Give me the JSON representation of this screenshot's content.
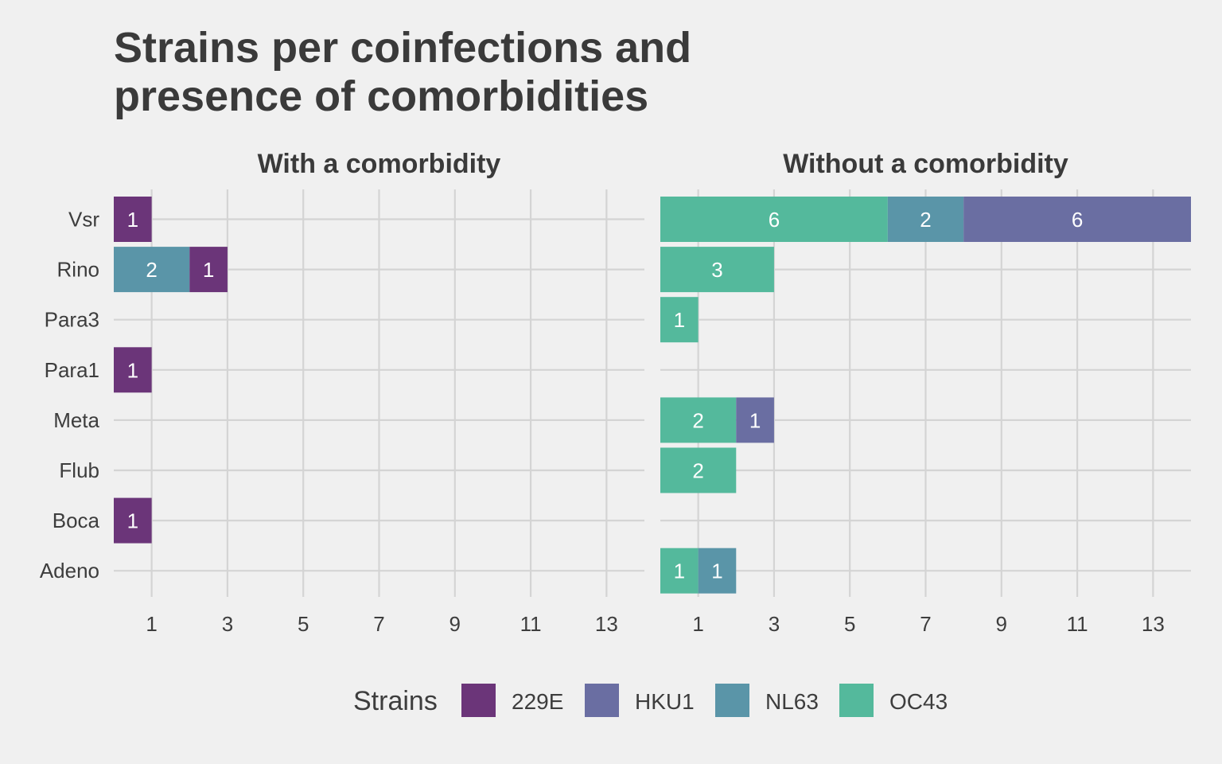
{
  "chart_data": {
    "type": "bar",
    "orientation": "horizontal",
    "stacked": true,
    "title": "Strains per coinfections and presence of comorbidities",
    "title_lines": [
      "Strains per coinfections and",
      "presence of comorbidities"
    ],
    "categories": [
      "Vsr",
      "Rino",
      "Para3",
      "Para1",
      "Meta",
      "Flub",
      "Boca",
      "Adeno"
    ],
    "x_ticks": [
      1,
      3,
      5,
      7,
      9,
      11,
      13
    ],
    "xlim": [
      0,
      14
    ],
    "grid": true,
    "legend": {
      "title": "Strains",
      "position": "bottom",
      "entries": [
        {
          "name": "229E",
          "color": "#6b3579"
        },
        {
          "name": "HKU1",
          "color": "#6a6ea2"
        },
        {
          "name": "NL63",
          "color": "#5a95a8"
        },
        {
          "name": "OC43",
          "color": "#54b99c"
        }
      ]
    },
    "stack_order": [
      "OC43",
      "NL63",
      "HKU1",
      "229E"
    ],
    "panels": [
      {
        "title": "With a comorbidity",
        "series": [
          {
            "name": "229E",
            "values": [
              1,
              1,
              0,
              1,
              0,
              0,
              1,
              0
            ]
          },
          {
            "name": "HKU1",
            "values": [
              0,
              0,
              0,
              0,
              0,
              0,
              0,
              0
            ]
          },
          {
            "name": "NL63",
            "values": [
              0,
              2,
              0,
              0,
              0,
              0,
              0,
              0
            ]
          },
          {
            "name": "OC43",
            "values": [
              0,
              0,
              0,
              0,
              0,
              0,
              0,
              0
            ]
          }
        ]
      },
      {
        "title": "Without a comorbidity",
        "series": [
          {
            "name": "229E",
            "values": [
              0,
              0,
              0,
              0,
              0,
              0,
              0,
              0
            ]
          },
          {
            "name": "HKU1",
            "values": [
              6,
              0,
              0,
              0,
              1,
              0,
              0,
              0
            ]
          },
          {
            "name": "NL63",
            "values": [
              2,
              0,
              0,
              0,
              0,
              0,
              0,
              1
            ]
          },
          {
            "name": "OC43",
            "values": [
              6,
              3,
              1,
              0,
              2,
              2,
              0,
              1
            ]
          }
        ]
      }
    ]
  }
}
